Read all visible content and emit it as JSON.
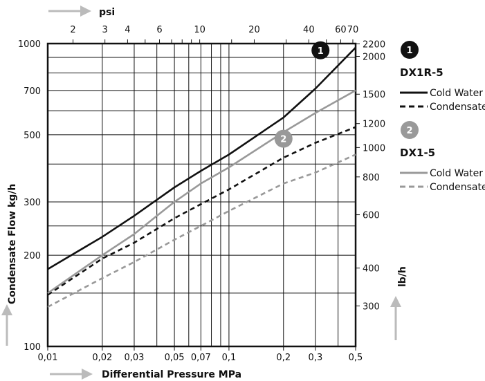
{
  "chart_data": {
    "type": "line",
    "title": "",
    "xlabel": "Differential Pressure MPa",
    "ylabel": "Condensate Flow kg/h",
    "x_scale": "log",
    "y_scale": "log",
    "xlim": [
      0.01,
      0.5
    ],
    "ylim": [
      100,
      1000
    ],
    "x_ticks": [
      0.01,
      0.02,
      0.03,
      0.05,
      0.07,
      0.1,
      0.2,
      0.3,
      0.5
    ],
    "x_tick_labels": [
      "0,01",
      "0,02",
      "0,03",
      "0,05",
      "0,07",
      "0,1",
      "0,2",
      "0,3",
      "0,5"
    ],
    "x_grid": [
      0.01,
      0.02,
      0.03,
      0.04,
      0.05,
      0.06,
      0.07,
      0.08,
      0.09,
      0.1,
      0.2,
      0.3,
      0.4,
      0.5
    ],
    "y_ticks": [
      100,
      200,
      300,
      500,
      700,
      1000
    ],
    "y_tick_labels": [
      "100",
      "200",
      "300",
      "500",
      "700",
      "1000"
    ],
    "y_grid": [
      100,
      150,
      200,
      250,
      300,
      400,
      500,
      600,
      700,
      800,
      900,
      1000
    ],
    "top_axis": {
      "label": "psi",
      "ticks": [
        2,
        3,
        4,
        6,
        10,
        20,
        40,
        60,
        70
      ],
      "tick_labels": [
        "2",
        "3",
        "4",
        "6",
        "10",
        "20",
        "40",
        "60",
        "70"
      ],
      "minor": [
        2,
        3,
        4,
        5,
        6,
        7,
        8,
        9,
        10,
        15,
        20,
        30,
        40,
        50,
        60,
        70
      ]
    },
    "right_axis": {
      "label": "lb/h",
      "ticks": [
        300,
        400,
        600,
        800,
        1000,
        1200,
        1500,
        2000,
        2200
      ],
      "tick_labels": [
        "300",
        "400",
        "600",
        "800",
        "1000",
        "1200",
        "1500",
        "2000",
        "2200"
      ]
    },
    "grid": true,
    "legend_position": "right",
    "series": [
      {
        "name": "Cold Water",
        "group": "DX1R-5",
        "color": "#111111",
        "dash": "solid",
        "x": [
          0.01,
          0.02,
          0.03,
          0.04,
          0.05,
          0.07,
          0.1,
          0.2,
          0.3,
          0.5
        ],
        "y": [
          180,
          230,
          270,
          305,
          335,
          380,
          430,
          570,
          710,
          970
        ]
      },
      {
        "name": "Condensate",
        "group": "DX1R-5",
        "color": "#111111",
        "dash": "dashed",
        "x": [
          0.01,
          0.02,
          0.03,
          0.05,
          0.07,
          0.1,
          0.2,
          0.3,
          0.5
        ],
        "y": [
          148,
          195,
          220,
          265,
          295,
          330,
          420,
          470,
          530
        ]
      },
      {
        "name": "Cold Water",
        "group": "DX1-5",
        "color": "#999999",
        "dash": "solid",
        "x": [
          0.01,
          0.02,
          0.03,
          0.04,
          0.05,
          0.07,
          0.1,
          0.2,
          0.3,
          0.5
        ],
        "y": [
          150,
          200,
          235,
          270,
          300,
          345,
          390,
          510,
          590,
          700
        ]
      },
      {
        "name": "Condensate",
        "group": "DX1-5",
        "color": "#999999",
        "dash": "dashed",
        "x": [
          0.01,
          0.02,
          0.03,
          0.05,
          0.07,
          0.1,
          0.2,
          0.3,
          0.5
        ],
        "y": [
          135,
          168,
          190,
          225,
          250,
          280,
          345,
          375,
          430
        ]
      }
    ],
    "annotations": [
      {
        "text": "1",
        "style": "dark-badge",
        "x": 0.32,
        "y": 950
      },
      {
        "text": "2",
        "style": "gray-badge",
        "x": 0.2,
        "y": 485
      }
    ]
  },
  "legend": {
    "groups": [
      {
        "badge": "1",
        "badge_color": "#111111",
        "name": "DX1R-5",
        "items": [
          {
            "label": "Cold Water",
            "color": "#111111",
            "dash": "solid"
          },
          {
            "label": "Condensate",
            "color": "#111111",
            "dash": "dashed"
          }
        ]
      },
      {
        "badge": "2",
        "badge_color": "#999999",
        "name": "DX1-5",
        "items": [
          {
            "label": "Cold Water",
            "color": "#999999",
            "dash": "solid"
          },
          {
            "label": "Condensate",
            "color": "#999999",
            "dash": "dashed"
          }
        ]
      }
    ]
  },
  "colors": {
    "frame": "#111111",
    "grid": "#111111",
    "arrow": "#bbbbbb"
  },
  "icons": {
    "direction_arrows": "arrow-icon"
  }
}
